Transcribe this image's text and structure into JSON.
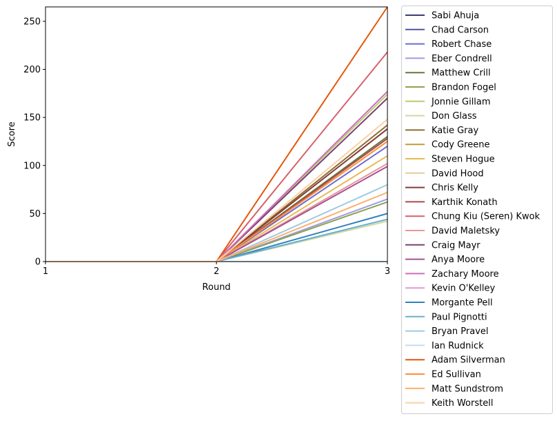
{
  "chart_data": {
    "type": "line",
    "title": "",
    "xlabel": "Round",
    "ylabel": "Score",
    "x": [
      1,
      2,
      3
    ],
    "xticks": [
      "1",
      "2",
      "3"
    ],
    "yticks": [
      "0",
      "50",
      "100",
      "150",
      "200",
      "250"
    ],
    "xlim": [
      1,
      3
    ],
    "ylim": [
      0,
      265
    ],
    "grid": false,
    "legend_placement": "outside-right",
    "series": [
      {
        "name": "Sabi Ahuja",
        "color": "#393b79",
        "values": [
          0,
          0,
          0
        ]
      },
      {
        "name": "Chad Carson",
        "color": "#5254a3",
        "values": [
          0,
          0,
          0
        ]
      },
      {
        "name": "Robert Chase",
        "color": "#6b6ecf",
        "values": [
          0,
          0,
          120
        ]
      },
      {
        "name": "Eber Condrell",
        "color": "#9c9ede",
        "values": [
          0,
          0,
          65
        ]
      },
      {
        "name": "Matthew Crill",
        "color": "#637939",
        "values": [
          0,
          0,
          130
        ]
      },
      {
        "name": "Brandon Fogel",
        "color": "#8ca252",
        "values": [
          0,
          0,
          62
        ]
      },
      {
        "name": "Jonnie Gillam",
        "color": "#b5cf6b",
        "values": [
          0,
          0,
          174
        ]
      },
      {
        "name": "Don Glass",
        "color": "#cedb9c",
        "values": [
          0,
          0,
          42
        ]
      },
      {
        "name": "Katie Gray",
        "color": "#8c6d31",
        "values": [
          0,
          0,
          142
        ]
      },
      {
        "name": "Cody Greene",
        "color": "#bd9e39",
        "values": [
          0,
          0,
          0
        ]
      },
      {
        "name": "Steven Hogue",
        "color": "#e7ba52",
        "values": [
          0,
          0,
          110
        ]
      },
      {
        "name": "David Hood",
        "color": "#e7cb94",
        "values": [
          0,
          0,
          0
        ]
      },
      {
        "name": "Chris Kelly",
        "color": "#843c39",
        "values": [
          0,
          0,
          138
        ]
      },
      {
        "name": "Karthik Konath",
        "color": "#ad494a",
        "values": [
          0,
          0,
          128
        ]
      },
      {
        "name": "Chung Kiu (Seren) Kwok",
        "color": "#d6616b",
        "values": [
          0,
          0,
          218
        ]
      },
      {
        "name": "David Maletsky",
        "color": "#e7969c",
        "values": [
          0,
          0,
          102
        ]
      },
      {
        "name": "Craig Mayr",
        "color": "#7b4173",
        "values": [
          0,
          0,
          170
        ]
      },
      {
        "name": "Anya Moore",
        "color": "#a55194",
        "values": [
          0,
          0,
          99
        ]
      },
      {
        "name": "Zachary Moore",
        "color": "#ce6dbd",
        "values": [
          0,
          0,
          177
        ]
      },
      {
        "name": "Kevin O'Kelley",
        "color": "#de9ed6",
        "values": [
          0,
          0,
          0
        ]
      },
      {
        "name": "Morgante Pell",
        "color": "#3182bd",
        "values": [
          0,
          0,
          50
        ]
      },
      {
        "name": "Paul Pignotti",
        "color": "#6baed6",
        "values": [
          0,
          0,
          44
        ]
      },
      {
        "name": "Bryan Pravel",
        "color": "#9ecae1",
        "values": [
          0,
          0,
          80
        ]
      },
      {
        "name": "Ian Rudnick",
        "color": "#c6dbef",
        "values": [
          0,
          0,
          0
        ]
      },
      {
        "name": "Adam Silverman",
        "color": "#e6550d",
        "values": [
          0,
          0,
          265
        ]
      },
      {
        "name": "Ed Sullivan",
        "color": "#fd8d3c",
        "values": [
          0,
          0,
          125
        ]
      },
      {
        "name": "Matt Sundstrom",
        "color": "#fdae6b",
        "values": [
          0,
          0,
          72
        ]
      },
      {
        "name": "Keith Worstell",
        "color": "#fdd0a2",
        "values": [
          0,
          0,
          148
        ]
      }
    ]
  }
}
